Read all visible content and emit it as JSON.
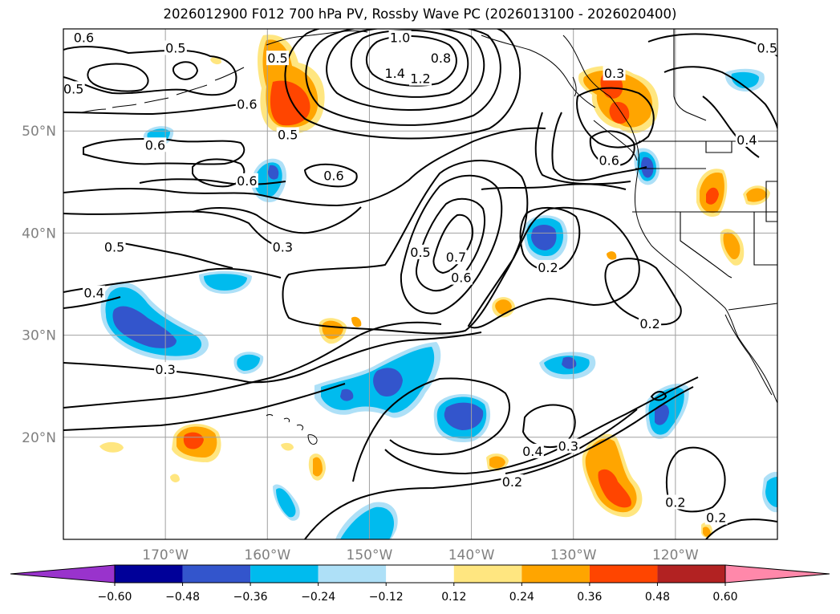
{
  "title": "2026012900 F012 700 hPa PV, Rossby Wave PC (2026013100 - 2026020400)",
  "map": {
    "lon_range": [
      -180,
      -110
    ],
    "lat_range": [
      10,
      60
    ],
    "lon_ticks": [
      {
        "value": -170,
        "label": "170°W"
      },
      {
        "value": -160,
        "label": "160°W"
      },
      {
        "value": -150,
        "label": "150°W"
      },
      {
        "value": -140,
        "label": "140°W"
      },
      {
        "value": -130,
        "label": "130°W"
      },
      {
        "value": -120,
        "label": "120°W"
      }
    ],
    "lat_ticks": [
      {
        "value": 20,
        "label": "20°N"
      },
      {
        "value": 30,
        "label": "30°N"
      },
      {
        "value": 40,
        "label": "40°N"
      },
      {
        "value": 50,
        "label": "50°N"
      }
    ],
    "gridlines": true
  },
  "colorbar": {
    "levels": [
      -0.6,
      -0.48,
      -0.36,
      -0.24,
      -0.12,
      0.12,
      0.24,
      0.36,
      0.48,
      0.6
    ],
    "tick_labels": [
      "−0.60",
      "−0.48",
      "−0.36",
      "−0.24",
      "−0.12",
      "0.12",
      "0.24",
      "0.36",
      "0.48",
      "0.60"
    ],
    "colors": [
      "#9933cc",
      "#000099",
      "#3355cc",
      "#00bbee",
      "#aee0f7",
      "#ffffff",
      "#ffe680",
      "#ffa500",
      "#ff4500",
      "#b22222",
      "#ff88aa"
    ],
    "extend": "both"
  },
  "contour_labels": [
    {
      "text": "0.6",
      "lon": -178,
      "lat": 59
    },
    {
      "text": "0.5",
      "lon": -169,
      "lat": 58
    },
    {
      "text": "0.5",
      "lon": -179,
      "lat": 54
    },
    {
      "text": "1.0",
      "lon": -147,
      "lat": 59
    },
    {
      "text": "0.8",
      "lon": -143,
      "lat": 57
    },
    {
      "text": "1.4",
      "lon": -147.5,
      "lat": 55.5
    },
    {
      "text": "1.2",
      "lon": -145,
      "lat": 55
    },
    {
      "text": "0.5",
      "lon": -159,
      "lat": 57
    },
    {
      "text": "0.6",
      "lon": -162,
      "lat": 52.5
    },
    {
      "text": "0.5",
      "lon": -158,
      "lat": 49.5
    },
    {
      "text": "0.6",
      "lon": -171,
      "lat": 48.5
    },
    {
      "text": "0.6",
      "lon": -162,
      "lat": 45
    },
    {
      "text": "0.6",
      "lon": -153.5,
      "lat": 45.5
    },
    {
      "text": "0.5",
      "lon": -111,
      "lat": 58
    },
    {
      "text": "0.3",
      "lon": -126,
      "lat": 55.5
    },
    {
      "text": "0.6",
      "lon": -126.5,
      "lat": 47
    },
    {
      "text": "0.4",
      "lon": -113,
      "lat": 49
    },
    {
      "text": "0.5",
      "lon": -175,
      "lat": 38.5
    },
    {
      "text": "0.3",
      "lon": -158.5,
      "lat": 38.5
    },
    {
      "text": "0.5",
      "lon": -145,
      "lat": 38
    },
    {
      "text": "0.7",
      "lon": -141.5,
      "lat": 37.5
    },
    {
      "text": "0.6",
      "lon": -141,
      "lat": 35.5
    },
    {
      "text": "0.2",
      "lon": -132.5,
      "lat": 36.5
    },
    {
      "text": "0.4",
      "lon": -177,
      "lat": 34
    },
    {
      "text": "0.2",
      "lon": -122.5,
      "lat": 31
    },
    {
      "text": "0.3",
      "lon": -170,
      "lat": 26.5
    },
    {
      "text": "0.4",
      "lon": -134,
      "lat": 18.5
    },
    {
      "text": "0.3",
      "lon": -130.5,
      "lat": 19
    },
    {
      "text": "0.2",
      "lon": -136,
      "lat": 15.5
    },
    {
      "text": "0.2",
      "lon": -120,
      "lat": 13.5
    },
    {
      "text": "0.2",
      "lon": -116,
      "lat": 12
    }
  ]
}
